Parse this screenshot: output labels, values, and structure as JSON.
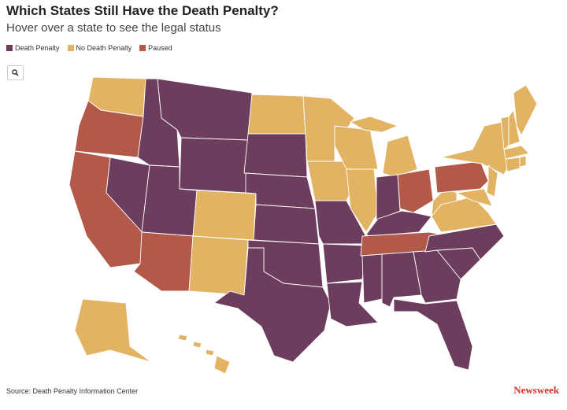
{
  "header": {
    "title": "Which States Still Have the Death Penalty?",
    "subtitle": "Hover over a state to see the legal status"
  },
  "legend": [
    {
      "label": "Death Penalty",
      "color": "#6d3d5e"
    },
    {
      "label": "No Death Penalty",
      "color": "#e2b362"
    },
    {
      "label": "Paused",
      "color": "#b3594a"
    }
  ],
  "footer": {
    "source": "Source: Death Penalty Information Center",
    "brand": "Newsweek"
  }
}
